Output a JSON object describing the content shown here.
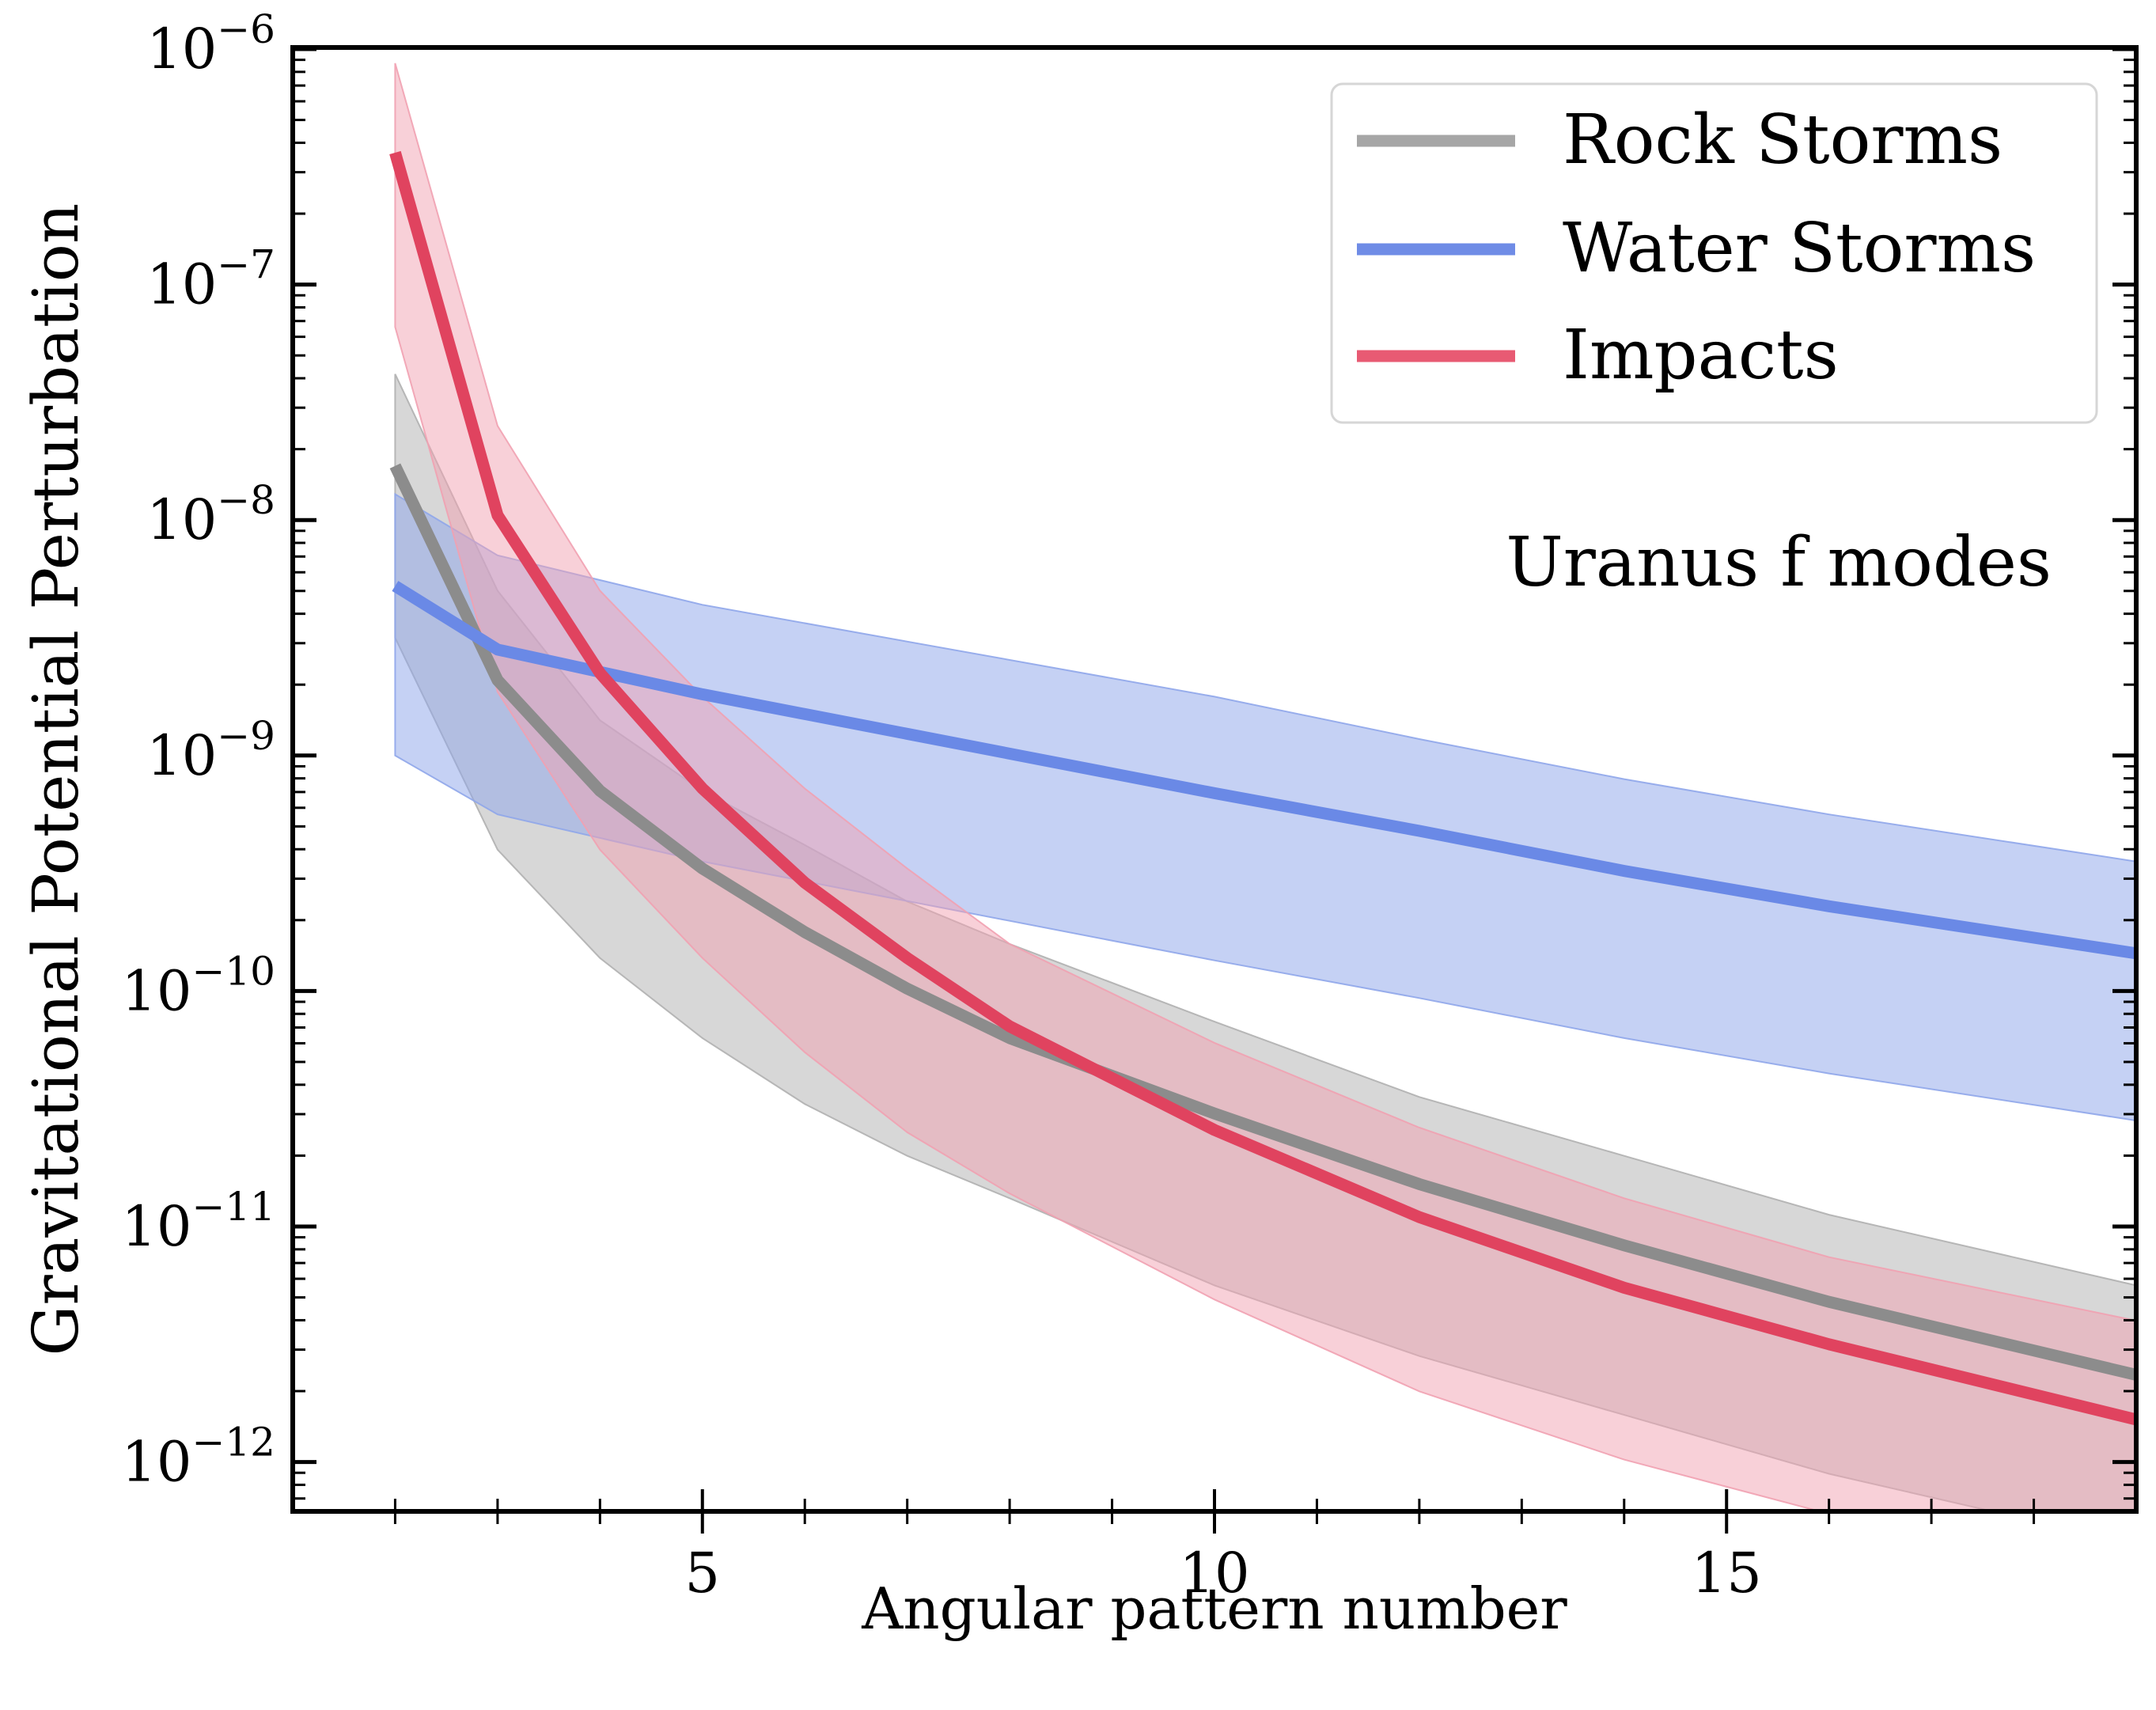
{
  "chart_data": {
    "type": "line",
    "title": "",
    "annotation": "Uranus f modes",
    "xlabel": "Angular pattern number",
    "ylabel": "Gravitational Potential Perturbation",
    "xscale": "linear",
    "yscale": "log",
    "xlim": [
      1,
      19
    ],
    "ylim_log10": [
      -12.2,
      -6
    ],
    "xticks": [
      5,
      10,
      15
    ],
    "xtick_labels": [
      "5",
      "10",
      "15"
    ],
    "xminor": [
      2,
      3,
      4,
      6,
      7,
      8,
      9,
      11,
      12,
      13,
      14,
      16,
      17,
      18
    ],
    "yticks_log10": [
      -6,
      -7,
      -8,
      -9,
      -10,
      -11,
      -12
    ],
    "ytick_base": "10",
    "ytick_exponents": [
      "−6",
      "−7",
      "−8",
      "−9",
      "−10",
      "−11",
      "−12"
    ],
    "legend_position": "top-right",
    "series": [
      {
        "name": "Rock Storms",
        "color": "#8c8c8c",
        "legend_color": "#a6a6a6",
        "band_color": "#b0b0b0",
        "x": [
          2,
          3,
          4,
          5,
          6,
          7,
          8,
          10,
          12,
          14,
          16,
          19
        ],
        "log10_center": [
          -7.77,
          -8.68,
          -9.15,
          -9.48,
          -9.75,
          -9.99,
          -10.2,
          -10.52,
          -10.82,
          -11.08,
          -11.32,
          -11.63
        ],
        "log10_upper": [
          -7.38,
          -8.3,
          -8.85,
          -9.15,
          -9.38,
          -9.62,
          -9.8,
          -10.13,
          -10.45,
          -10.7,
          -10.95,
          -11.25
        ],
        "log10_lower": [
          -8.5,
          -9.4,
          -9.86,
          -10.2,
          -10.48,
          -10.7,
          -10.88,
          -11.25,
          -11.55,
          -11.8,
          -12.05,
          -12.35
        ]
      },
      {
        "name": "Water Storms",
        "color": "#6a89e6",
        "legend_color": "#6f8ce6",
        "band_color": "#8fa6ea",
        "x": [
          2,
          3,
          5,
          10,
          12,
          14,
          16,
          19
        ],
        "log10_center": [
          -8.28,
          -8.55,
          -8.74,
          -9.16,
          -9.32,
          -9.49,
          -9.64,
          -9.84
        ],
        "log10_upper": [
          -7.89,
          -8.15,
          -8.36,
          -8.75,
          -8.93,
          -9.1,
          -9.25,
          -9.45
        ],
        "log10_lower": [
          -9.0,
          -9.25,
          -9.45,
          -9.87,
          -10.03,
          -10.2,
          -10.35,
          -10.55
        ]
      },
      {
        "name": "Impacts",
        "color": "#e0435f",
        "legend_color": "#e85a73",
        "band_color": "#f1a1b1",
        "x": [
          2,
          3,
          4,
          5,
          6,
          7,
          8,
          10,
          12,
          14,
          16,
          19
        ],
        "log10_center": [
          -6.44,
          -7.98,
          -8.65,
          -9.14,
          -9.54,
          -9.86,
          -10.15,
          -10.59,
          -10.96,
          -11.26,
          -11.5,
          -11.82
        ],
        "log10_upper": [
          -6.06,
          -7.6,
          -8.3,
          -8.75,
          -9.14,
          -9.48,
          -9.8,
          -10.22,
          -10.58,
          -10.88,
          -11.13,
          -11.4
        ],
        "log10_lower": [
          -7.18,
          -8.73,
          -9.4,
          -9.86,
          -10.26,
          -10.6,
          -10.86,
          -11.31,
          -11.7,
          -11.99,
          -12.22,
          -12.5
        ]
      }
    ]
  }
}
